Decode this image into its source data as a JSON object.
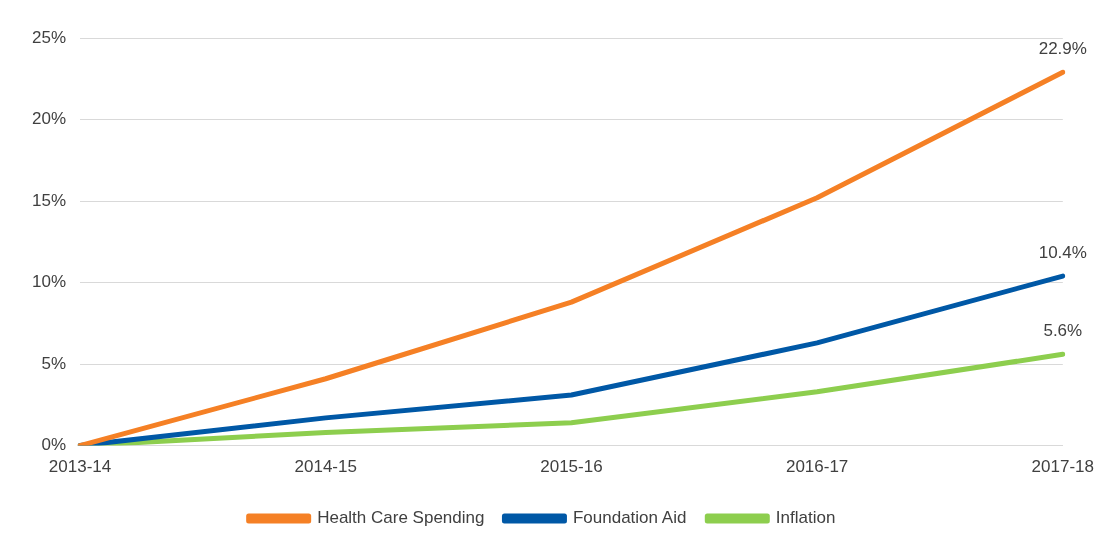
{
  "chart_data": {
    "type": "line",
    "categories": [
      "2013-14",
      "2014-15",
      "2015-16",
      "2016-17",
      "2017-18"
    ],
    "series": [
      {
        "name": "Health Care Spending",
        "color": "#f58025",
        "values": [
          0,
          4.1,
          8.8,
          15.2,
          22.9
        ],
        "value_labels": [
          null,
          null,
          null,
          null,
          "22.9%"
        ]
      },
      {
        "name": "Foundation Aid",
        "color": "#0058a6",
        "values": [
          0,
          1.7,
          3.1,
          6.3,
          10.4
        ],
        "value_labels": [
          null,
          null,
          null,
          null,
          "10.4%"
        ]
      },
      {
        "name": "Inflation",
        "color": "#8dce4e",
        "values": [
          0,
          0.8,
          1.4,
          3.3,
          5.6
        ],
        "value_labels": [
          null,
          null,
          null,
          null,
          "5.6%"
        ]
      }
    ],
    "ylim": [
      0,
      25
    ],
    "yticks": [
      {
        "value": 0,
        "label": "0%"
      },
      {
        "value": 5,
        "label": "5%"
      },
      {
        "value": 10,
        "label": "10%"
      },
      {
        "value": 15,
        "label": "15%"
      },
      {
        "value": 20,
        "label": "20%"
      },
      {
        "value": 25,
        "label": "25%"
      }
    ],
    "grid": "y",
    "legend": "bottom",
    "marker": "none",
    "line_style": "solid"
  }
}
